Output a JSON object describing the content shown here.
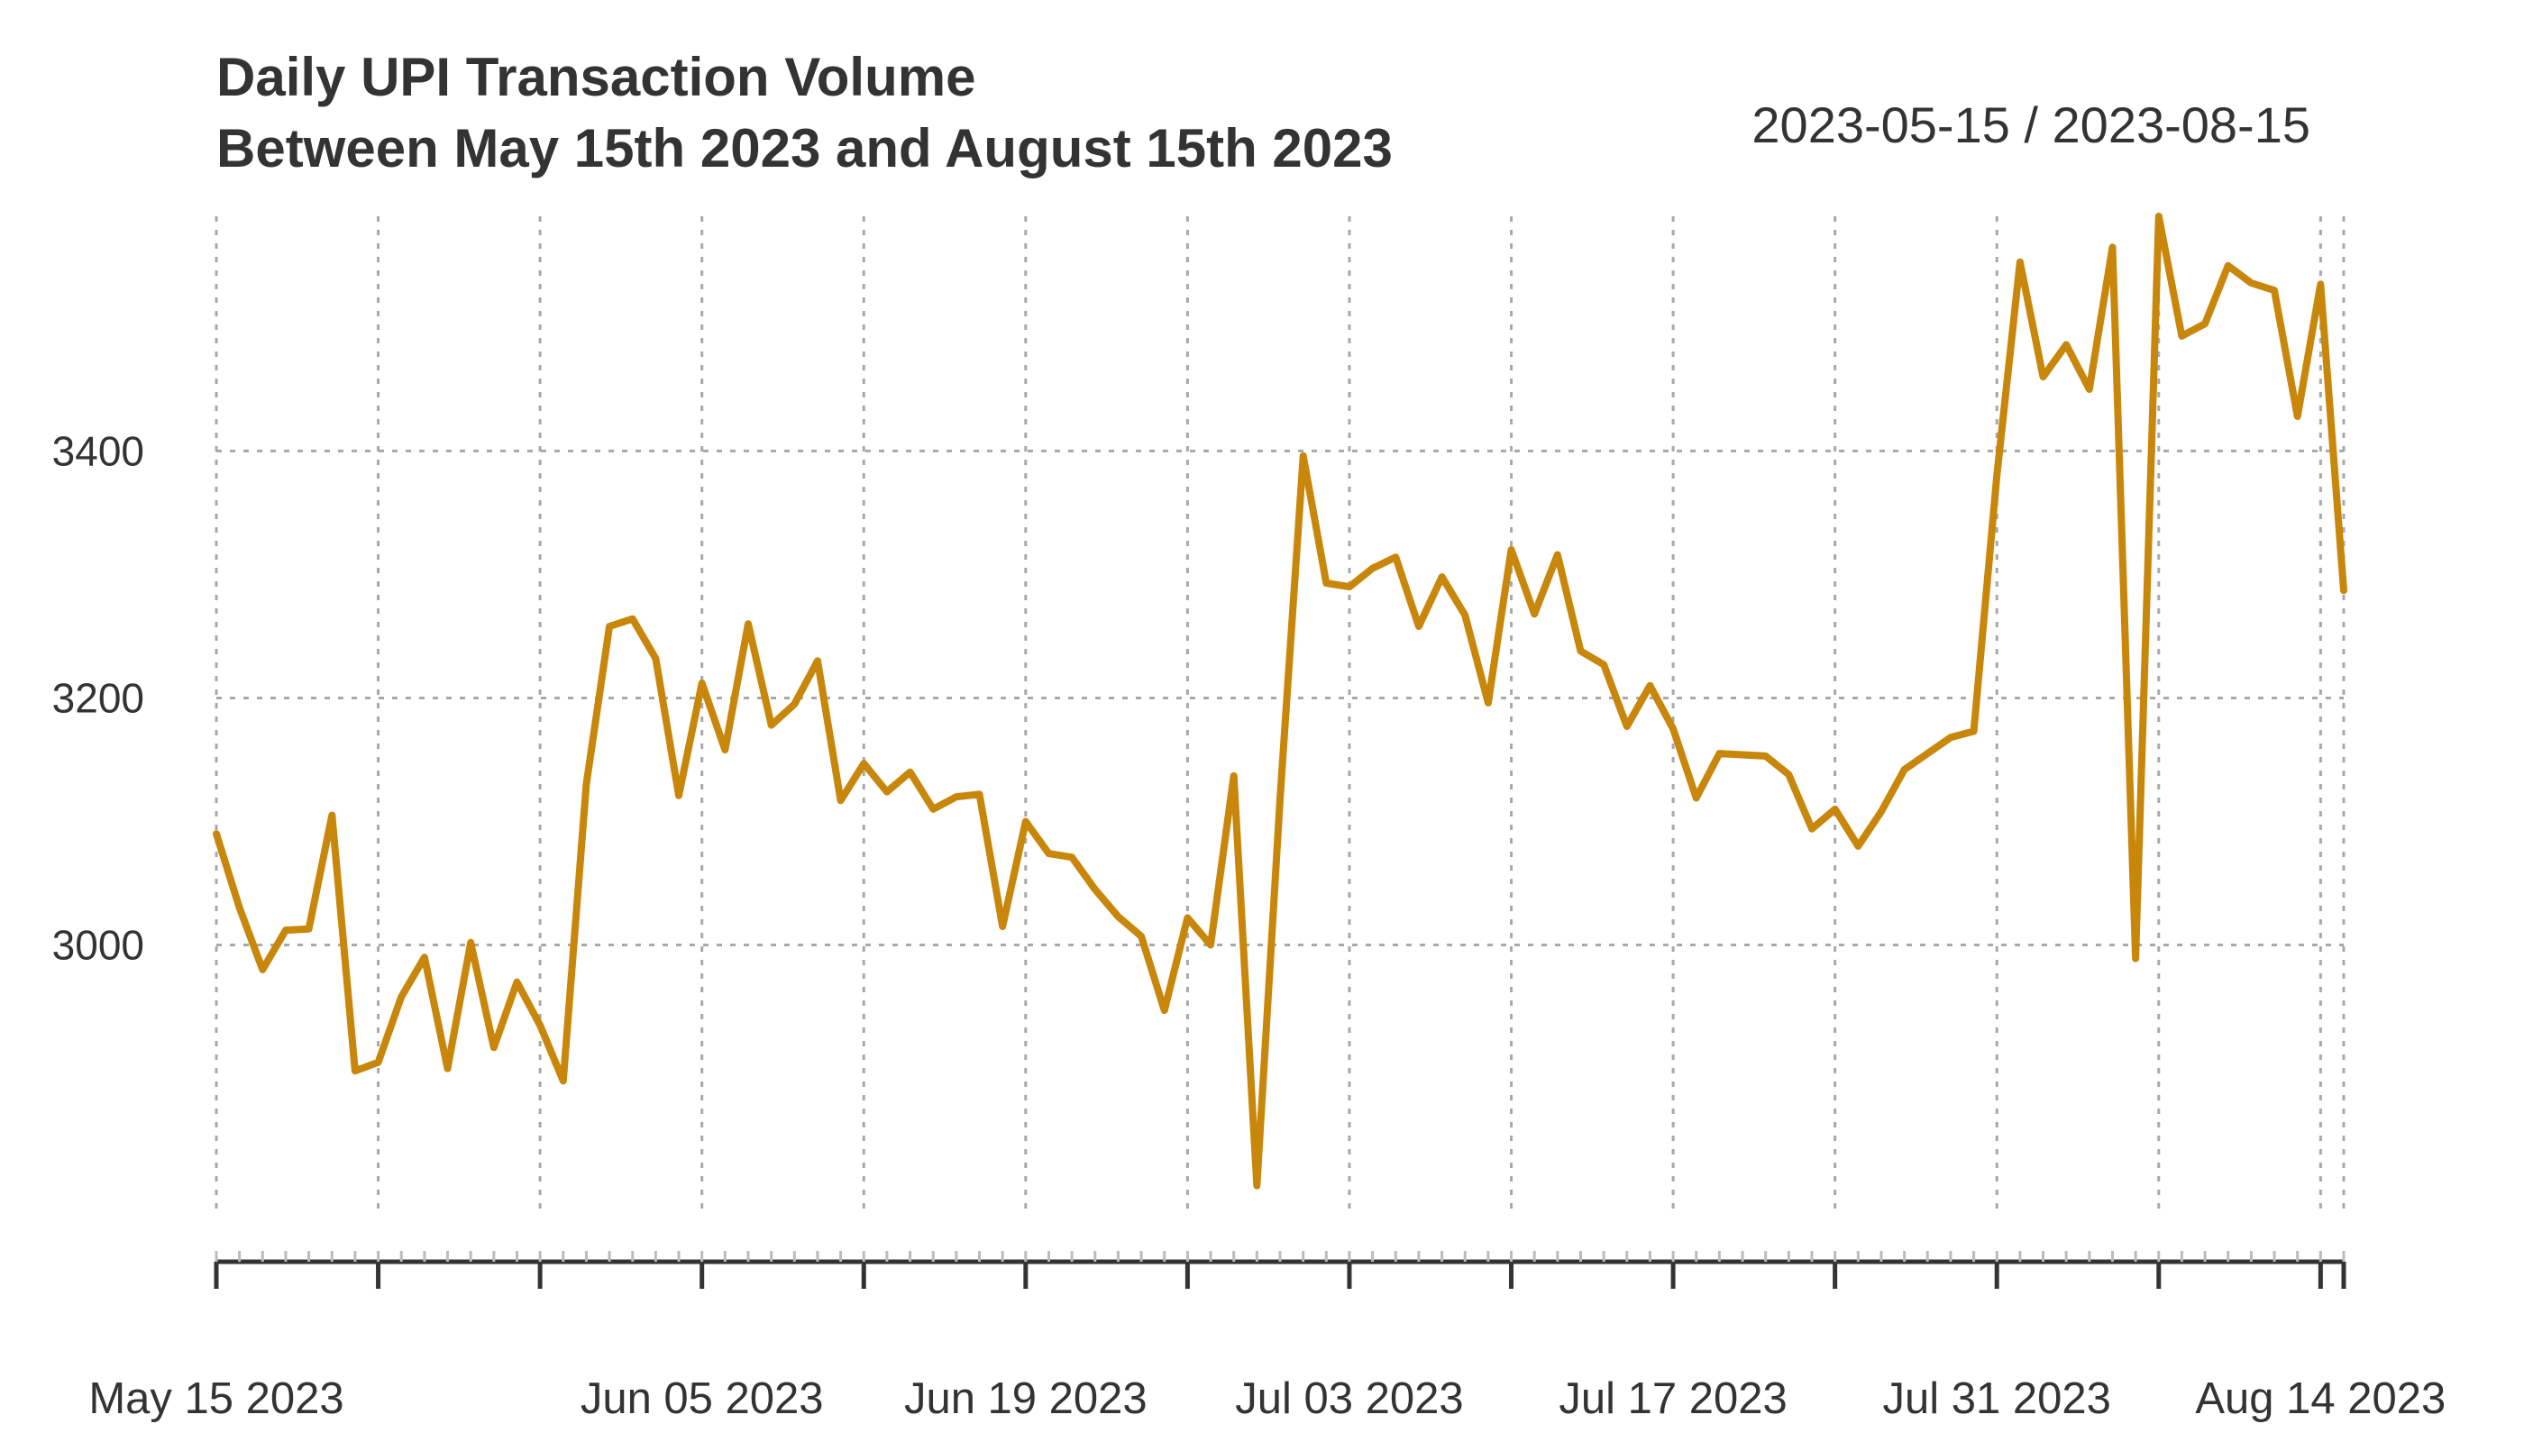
{
  "chart_data": {
    "type": "line",
    "title": "Daily UPI Transaction Volume",
    "subtitle": "Between May 15th 2023 and August 15th 2023",
    "date_range_label": "2023-05-15 / 2023-08-15",
    "xlabel": "",
    "ylabel": "",
    "x_start": "2023-05-15",
    "x_end": "2023-08-15",
    "ylim": [
      2780,
      3590
    ],
    "y_ticks": [
      3000,
      3200,
      3400
    ],
    "x_ticks": [
      {
        "date": "2023-05-15",
        "label": "May 15 2023"
      },
      {
        "date": "2023-05-22",
        "label": ""
      },
      {
        "date": "2023-05-29",
        "label": ""
      },
      {
        "date": "2023-06-05",
        "label": "Jun 05 2023"
      },
      {
        "date": "2023-06-12",
        "label": ""
      },
      {
        "date": "2023-06-19",
        "label": "Jun 19 2023"
      },
      {
        "date": "2023-06-26",
        "label": ""
      },
      {
        "date": "2023-07-03",
        "label": "Jul 03 2023"
      },
      {
        "date": "2023-07-10",
        "label": ""
      },
      {
        "date": "2023-07-17",
        "label": "Jul 17 2023"
      },
      {
        "date": "2023-07-24",
        "label": ""
      },
      {
        "date": "2023-07-31",
        "label": "Jul 31 2023"
      },
      {
        "date": "2023-08-07",
        "label": ""
      },
      {
        "date": "2023-08-14",
        "label": "Aug 14 2023"
      },
      {
        "date": "2023-08-15",
        "label": ""
      }
    ],
    "grid": true,
    "series": [
      {
        "color": "#c8860a",
        "values": [
          3090,
          3030,
          2980,
          3012,
          3013,
          3105,
          2898,
          2905,
          2958,
          2990,
          2900,
          3002,
          2917,
          2970,
          2935,
          2890,
          3130,
          3258,
          3264,
          3232,
          3121,
          3212,
          3158,
          3260,
          3178,
          3195,
          3230,
          3117,
          3147,
          3124,
          3140,
          3110,
          3120,
          3122,
          3015,
          3100,
          3074,
          3071,
          3045,
          3023,
          3007,
          2947,
          3022,
          3000,
          3137,
          2805,
          3118,
          3396,
          3293,
          3290,
          3305,
          3314,
          3258,
          3298,
          3267,
          3196,
          3320,
          3268,
          3316,
          3238,
          3227,
          3177,
          3210,
          3175,
          3119,
          3155,
          3154,
          3153,
          3138,
          3094,
          3110,
          3080,
          3108,
          3142,
          3155,
          3168,
          3173,
          3380,
          3553,
          3460,
          3486,
          3450,
          3565,
          2989,
          3590,
          3493,
          3503,
          3550,
          3536,
          3530,
          3428,
          3535,
          3287
        ]
      }
    ]
  }
}
